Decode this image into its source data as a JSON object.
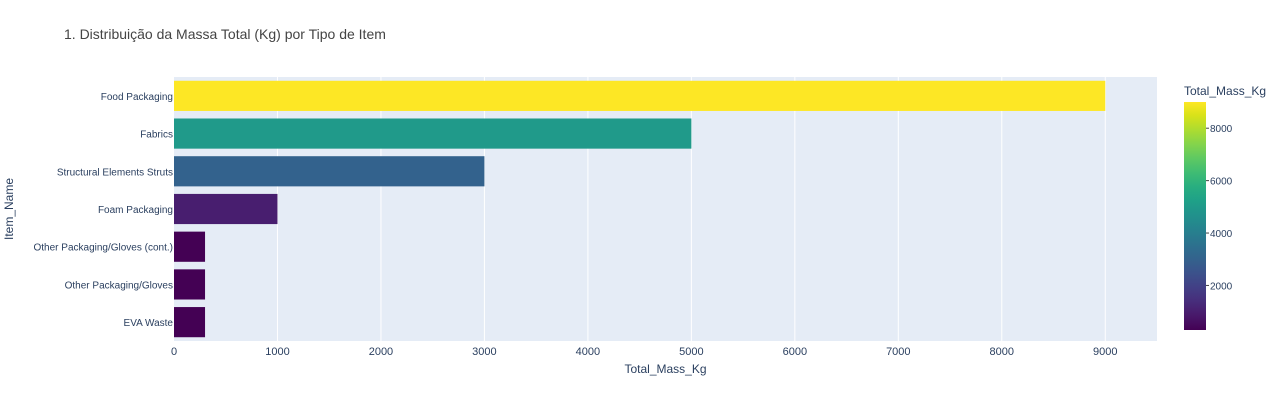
{
  "chart_data": {
    "type": "bar",
    "orientation": "horizontal",
    "title": "1. Distribuição da Massa Total (Kg) por Tipo de Item",
    "xlabel": "Total_Mass_Kg",
    "ylabel": "Item_Name",
    "categories": [
      "Food Packaging",
      "Fabrics",
      "Structural Elements Struts",
      "Foam Packaging",
      "Other Packaging/Gloves (cont.)",
      "Other Packaging/Gloves",
      "EVA Waste"
    ],
    "values": [
      9000,
      5000,
      3000,
      1000,
      300,
      300,
      300
    ],
    "xlim": [
      0,
      9500
    ],
    "xticks": [
      0,
      1000,
      2000,
      3000,
      4000,
      5000,
      6000,
      7000,
      8000,
      9000
    ],
    "grid": true,
    "colorbar": {
      "title": "Total_Mass_Kg",
      "colorscale": "Viridis",
      "range": [
        300,
        9000
      ],
      "ticks": [
        2000,
        4000,
        6000,
        8000
      ]
    },
    "colors": {
      "plot_bg": "#e5ecf6",
      "grid": "#ffffff",
      "text": "#2a3f5f",
      "title": "#444444"
    }
  }
}
